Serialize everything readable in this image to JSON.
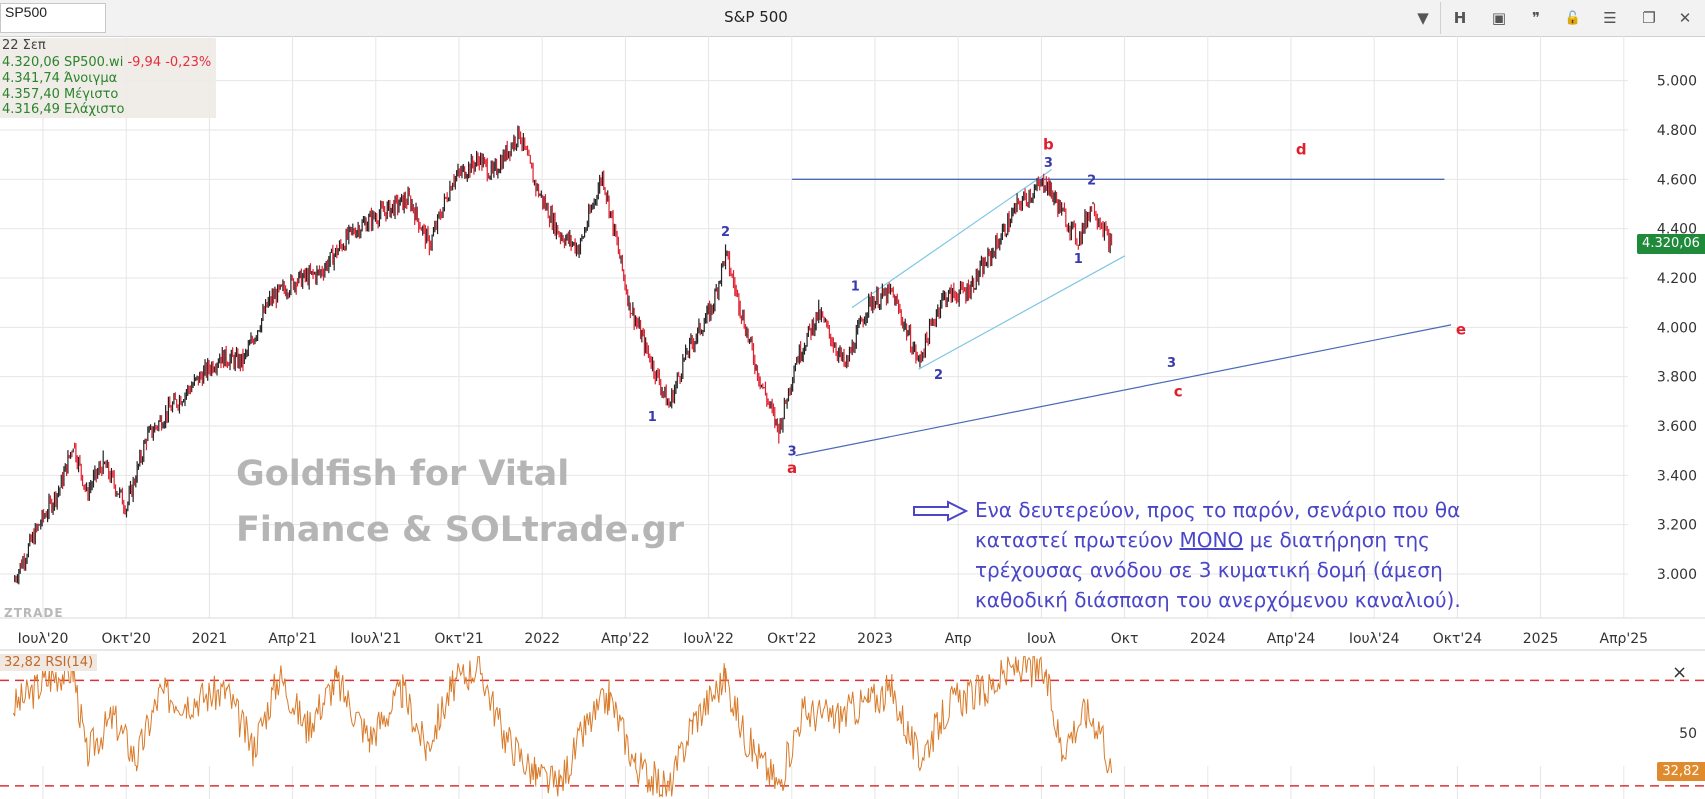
{
  "toolbar": {
    "symbol": "SP500",
    "title": "S&P 500",
    "buttons": [
      {
        "name": "dropdown-icon",
        "glyph": "▼"
      },
      {
        "name": "h-button",
        "glyph": "H"
      },
      {
        "name": "panel-icon",
        "glyph": "▣"
      },
      {
        "name": "quote-icon",
        "glyph": "❞"
      },
      {
        "name": "lock-icon",
        "glyph": "🔓"
      },
      {
        "name": "menu-icon",
        "glyph": "☰"
      },
      {
        "name": "restore-icon",
        "glyph": "❐"
      },
      {
        "name": "close-icon",
        "glyph": "✕"
      }
    ]
  },
  "ohlc": {
    "date": "22 Σεπ",
    "close": "4.320,06 SP500.wi",
    "change": "-9,94 -0,23%",
    "open": "4.341,74 Άνοιγμα",
    "high": "4.357,40 Μέγιστο",
    "low": "4.316,49 Ελάχιστο"
  },
  "watermark": {
    "line1": "Goldfish for Vital",
    "line2": "Finance & SOLtrade.gr"
  },
  "ztrade": "ZTRADE",
  "note": {
    "part1": "Ενα δευτερεύον, προς το παρόν, σενάριο που θα καταστεί πρωτεύον ",
    "underlined": "ΜΟΝΟ",
    "part2": " με διατήρηση της τρέχουσας ανόδου σε 3 κυματική δομή (άμεση καθοδική διάσπαση του ανερχόμενου καναλιού)."
  },
  "last_price": "4.320,06",
  "rsi": {
    "label": "32,82 RSI(14)",
    "value_tag": "32,82",
    "close": "×"
  },
  "colors": {
    "grid": "#e6e6e6",
    "candle_up": "#222222",
    "candle_down": "#e01e2e",
    "wave_blue": "#3a3ab0",
    "wave_red": "#e01e2e",
    "channel_line": "#7fc6e6",
    "trend_line": "#4a6ab8",
    "rsi_line": "#d97b2a",
    "rsi_bounds": "#e03030",
    "note_text": "#4b46c8",
    "last_price_tag": "#1f8a3a"
  },
  "chart_data": {
    "type": "line",
    "title": "S&P 500",
    "xlabel": "",
    "ylabel": "",
    "x_ticks": [
      "Ιουλ'20",
      "Οκτ'20",
      "2021",
      "Απρ'21",
      "Ιουλ'21",
      "Οκτ'21",
      "2022",
      "Απρ'22",
      "Ιουλ'22",
      "Οκτ'22",
      "2023",
      "Απρ",
      "Ιουλ",
      "Οκτ",
      "2024",
      "Απρ'24",
      "Ιουλ'24",
      "Οκτ'24",
      "2025",
      "Απρ'25"
    ],
    "y_ticks": [
      "3.000",
      "3.200",
      "3.400",
      "3.600",
      "3.800",
      "4.000",
      "4.200",
      "4.400",
      "4.600",
      "4.800",
      "5.000"
    ],
    "ylim": [
      2850,
      5100
    ],
    "xlim": [
      2020.47,
      2025.38
    ],
    "series": [
      {
        "name": "SP500",
        "points": [
          [
            2020.48,
            2970
          ],
          [
            2020.55,
            3180
          ],
          [
            2020.62,
            3350
          ],
          [
            2020.66,
            3530
          ],
          [
            2020.7,
            3330
          ],
          [
            2020.75,
            3450
          ],
          [
            2020.82,
            3270
          ],
          [
            2020.88,
            3550
          ],
          [
            2020.95,
            3670
          ],
          [
            2021.0,
            3740
          ],
          [
            2021.1,
            3880
          ],
          [
            2021.17,
            3860
          ],
          [
            2021.25,
            4110
          ],
          [
            2021.33,
            4190
          ],
          [
            2021.4,
            4220
          ],
          [
            2021.5,
            4390
          ],
          [
            2021.58,
            4460
          ],
          [
            2021.67,
            4520
          ],
          [
            2021.73,
            4330
          ],
          [
            2021.8,
            4600
          ],
          [
            2021.88,
            4680
          ],
          [
            2021.92,
            4620
          ],
          [
            2022.0,
            4790
          ],
          [
            2022.05,
            4570
          ],
          [
            2022.12,
            4380
          ],
          [
            2022.18,
            4320
          ],
          [
            2022.25,
            4620
          ],
          [
            2022.33,
            4100
          ],
          [
            2022.38,
            3920
          ],
          [
            2022.45,
            3680
          ],
          [
            2022.5,
            3890
          ],
          [
            2022.58,
            4080
          ],
          [
            2022.62,
            4300
          ],
          [
            2022.66,
            4100
          ],
          [
            2022.72,
            3800
          ],
          [
            2022.78,
            3580
          ],
          [
            2022.83,
            3860
          ],
          [
            2022.9,
            4060
          ],
          [
            2022.98,
            3840
          ],
          [
            2023.05,
            4100
          ],
          [
            2023.12,
            4140
          ],
          [
            2023.2,
            3860
          ],
          [
            2023.27,
            4120
          ],
          [
            2023.35,
            4150
          ],
          [
            2023.42,
            4300
          ],
          [
            2023.5,
            4500
          ],
          [
            2023.58,
            4590
          ],
          [
            2023.63,
            4470
          ],
          [
            2023.68,
            4350
          ],
          [
            2023.72,
            4500
          ],
          [
            2023.75,
            4420
          ],
          [
            2023.78,
            4320
          ]
        ]
      }
    ],
    "levels": [
      {
        "y": 4600,
        "x0": 2022.82,
        "x1": 2024.78
      }
    ],
    "trendlines": [
      {
        "x0": 2022.83,
        "y0": 3480,
        "x1": 2024.8,
        "y1": 4010,
        "style": "trend"
      },
      {
        "x0": 2023.0,
        "y0": 4080,
        "x1": 2023.6,
        "y1": 4640,
        "style": "channel"
      },
      {
        "x0": 2023.2,
        "y0": 3830,
        "x1": 2023.82,
        "y1": 4290,
        "style": "channel"
      }
    ],
    "wave_labels": [
      {
        "text": "1",
        "x": 2022.4,
        "y": 3620,
        "color": "blue"
      },
      {
        "text": "2",
        "x": 2022.62,
        "y": 4370,
        "color": "blue"
      },
      {
        "text": "3",
        "x": 2022.82,
        "y": 3480,
        "color": "blue"
      },
      {
        "text": "a",
        "x": 2022.82,
        "y": 3410,
        "color": "red"
      },
      {
        "text": "1",
        "x": 2023.01,
        "y": 4150,
        "color": "blue"
      },
      {
        "text": "2",
        "x": 2023.26,
        "y": 3790,
        "color": "blue"
      },
      {
        "text": "3",
        "x": 2023.59,
        "y": 4650,
        "color": "blue"
      },
      {
        "text": "b",
        "x": 2023.59,
        "y": 4720,
        "color": "red"
      },
      {
        "text": "2",
        "x": 2023.72,
        "y": 4580,
        "color": "blue"
      },
      {
        "text": "1",
        "x": 2023.68,
        "y": 4260,
        "color": "blue"
      },
      {
        "text": "d",
        "x": 2024.35,
        "y": 4700,
        "color": "red"
      },
      {
        "text": "3",
        "x": 2023.96,
        "y": 3840,
        "color": "blue"
      },
      {
        "text": "c",
        "x": 2023.98,
        "y": 3720,
        "color": "red"
      },
      {
        "text": "e",
        "x": 2024.83,
        "y": 3970,
        "color": "red"
      }
    ],
    "last_value": 4320.06,
    "rsi_series": {
      "name": "RSI(14)",
      "upper": 70,
      "lower": 30,
      "mid_tick": "50",
      "ylim": [
        25,
        80
      ],
      "points": [
        [
          2020.48,
          60
        ],
        [
          2020.6,
          72
        ],
        [
          2020.66,
          74
        ],
        [
          2020.7,
          42
        ],
        [
          2020.78,
          56
        ],
        [
          2020.85,
          40
        ],
        [
          2020.92,
          65
        ],
        [
          2021.0,
          62
        ],
        [
          2021.12,
          66
        ],
        [
          2021.2,
          44
        ],
        [
          2021.28,
          72
        ],
        [
          2021.36,
          52
        ],
        [
          2021.45,
          70
        ],
        [
          2021.55,
          48
        ],
        [
          2021.65,
          66
        ],
        [
          2021.72,
          44
        ],
        [
          2021.8,
          68
        ],
        [
          2021.88,
          76
        ],
        [
          2021.95,
          50
        ],
        [
          2022.05,
          34
        ],
        [
          2022.12,
          30
        ],
        [
          2022.2,
          52
        ],
        [
          2022.27,
          64
        ],
        [
          2022.35,
          38
        ],
        [
          2022.45,
          28
        ],
        [
          2022.52,
          54
        ],
        [
          2022.62,
          71
        ],
        [
          2022.68,
          48
        ],
        [
          2022.78,
          30
        ],
        [
          2022.85,
          58
        ],
        [
          2022.95,
          56
        ],
        [
          2023.05,
          62
        ],
        [
          2023.12,
          66
        ],
        [
          2023.2,
          40
        ],
        [
          2023.3,
          62
        ],
        [
          2023.4,
          66
        ],
        [
          2023.5,
          76
        ],
        [
          2023.58,
          72
        ],
        [
          2023.63,
          44
        ],
        [
          2023.7,
          58
        ],
        [
          2023.75,
          52
        ],
        [
          2023.78,
          33
        ]
      ]
    }
  }
}
